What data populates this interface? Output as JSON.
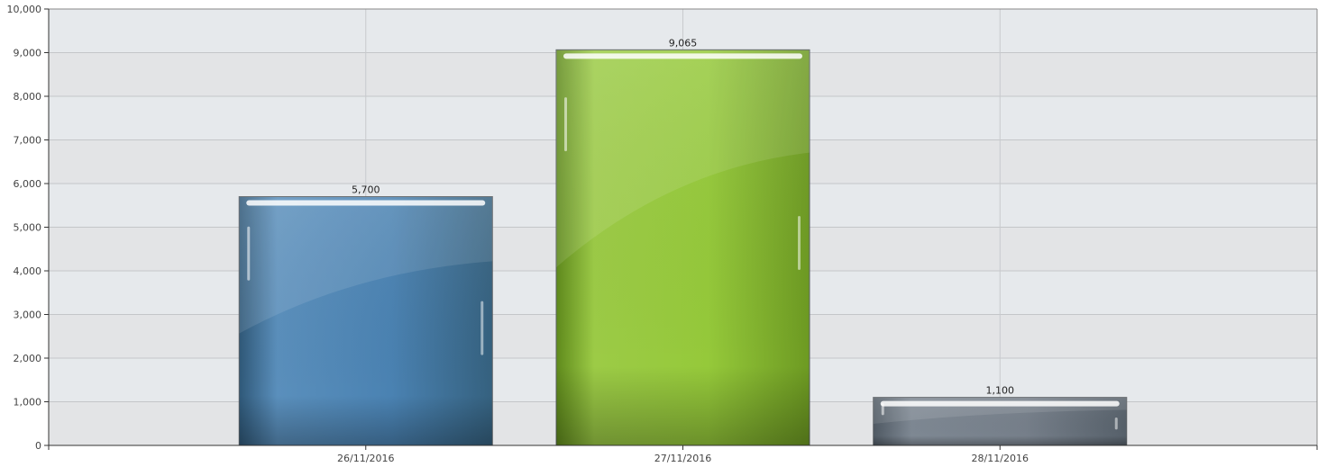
{
  "chart_data": {
    "type": "bar",
    "title": "",
    "xlabel": "",
    "ylabel": "",
    "categories": [
      "26/11/2016",
      "27/11/2016",
      "28/11/2016"
    ],
    "values": [
      5700,
      9065,
      1100
    ],
    "data_labels": [
      "5,700",
      "9,065",
      "1,100"
    ],
    "ylim": [
      0,
      10000
    ],
    "yticks": [
      0,
      1000,
      2000,
      3000,
      4000,
      5000,
      6000,
      7000,
      8000,
      9000,
      10000
    ],
    "ytick_labels": [
      "0",
      "1,000",
      "2,000",
      "3,000",
      "4,000",
      "5,000",
      "6,000",
      "7,000",
      "8,000",
      "9,000",
      "10,000"
    ],
    "grid": true,
    "legend": "none",
    "colors": [
      "#4a7fac",
      "#8cc232",
      "#6b7682"
    ]
  }
}
